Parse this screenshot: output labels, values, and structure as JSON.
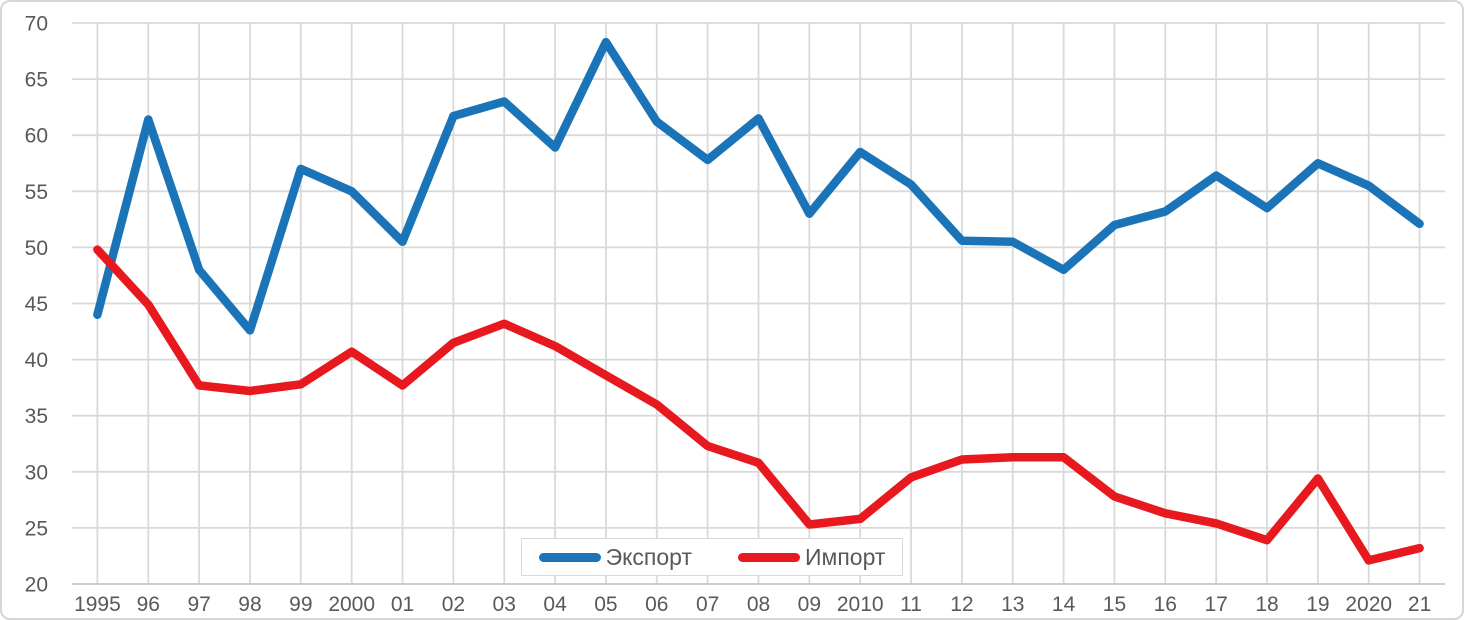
{
  "chart_data": {
    "type": "line",
    "title": "",
    "xlabel": "",
    "ylabel": "",
    "categories": [
      "1995",
      "96",
      "97",
      "98",
      "99",
      "2000",
      "01",
      "02",
      "03",
      "04",
      "05",
      "06",
      "07",
      "08",
      "09",
      "2010",
      "11",
      "12",
      "13",
      "14",
      "15",
      "16",
      "17",
      "18",
      "19",
      "2020",
      "21"
    ],
    "series": [
      {
        "name": "Экспорт",
        "color": "#1B74B8",
        "values": [
          44,
          61.4,
          48,
          42.6,
          57,
          55,
          50.5,
          61.7,
          63,
          58.9,
          68.3,
          61.2,
          57.8,
          61.5,
          53,
          58.5,
          55.6,
          50.6,
          50.5,
          48,
          52,
          53.2,
          56.4,
          53.5,
          57.5,
          55.5,
          52.1
        ]
      },
      {
        "name": "Импорт",
        "color": "#E8191E",
        "values": [
          49.8,
          44.9,
          37.7,
          37.2,
          37.8,
          40.7,
          37.7,
          41.5,
          43.2,
          41.2,
          38.6,
          36,
          32.3,
          30.8,
          25.3,
          25.8,
          29.5,
          31.1,
          31.3,
          31.3,
          27.8,
          26.3,
          25.4,
          23.9,
          29.4,
          22.1,
          23.2
        ]
      }
    ],
    "ylim": [
      20,
      70
    ],
    "ytick_step": 5,
    "yticks": [
      20,
      25,
      30,
      35,
      40,
      45,
      50,
      55,
      60,
      65,
      70
    ],
    "grid": true,
    "legend_position": "bottom-center-inside",
    "gridline_color": "#D9D9D9",
    "axis_line_color": "#C6C6C6",
    "tick_label_color": "#595959"
  }
}
